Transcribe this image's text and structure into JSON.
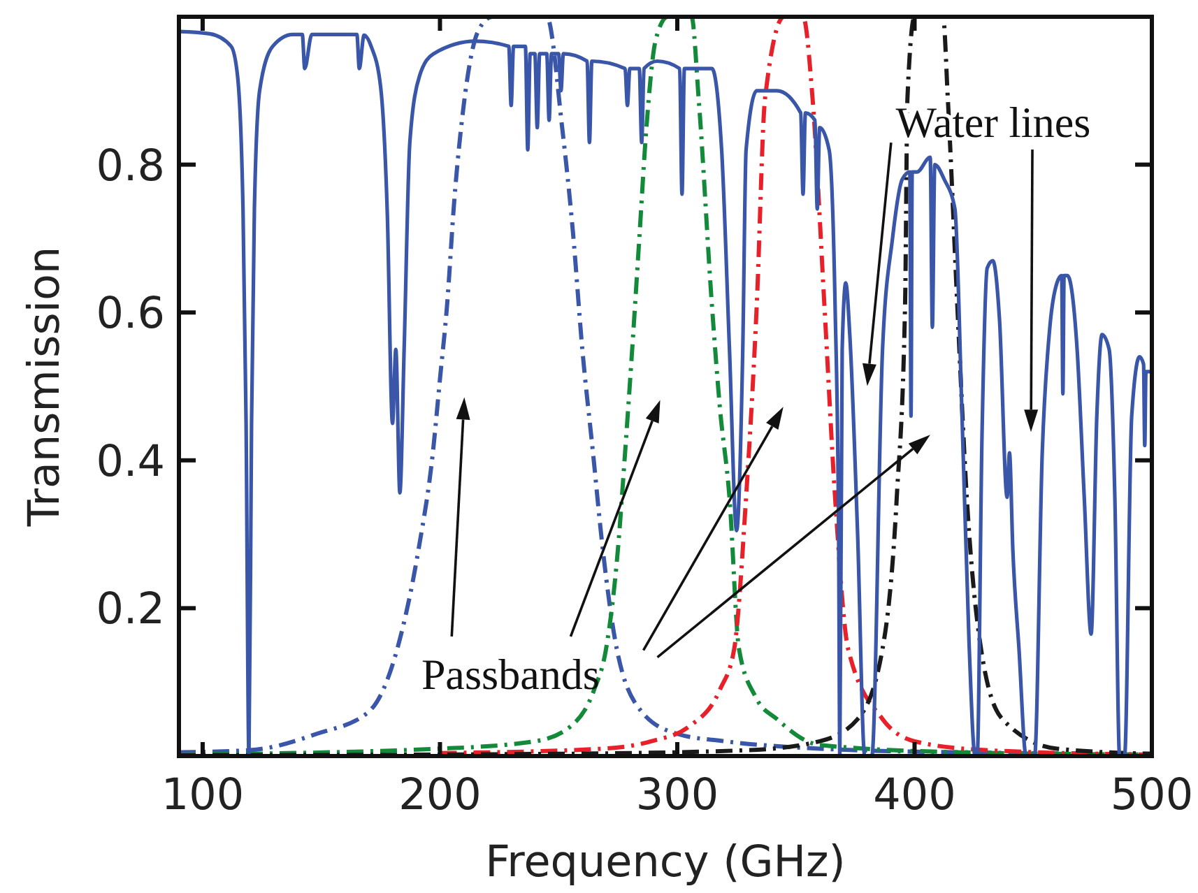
{
  "chart_data": {
    "type": "line",
    "xlabel": "Frequency (GHz)",
    "ylabel": "Transmission",
    "annotations": [
      "Water lines",
      "Passbands"
    ],
    "xlim": [
      90,
      500
    ],
    "ylim": [
      0,
      1
    ],
    "xticks": [
      100,
      200,
      300,
      400,
      500
    ],
    "yticks": [
      {
        "value": 0,
        "label": null
      },
      0.2,
      0.4,
      0.6,
      0.8
    ],
    "grid": false,
    "marker": "none",
    "series": [
      {
        "color": "#3a56a8",
        "line_style": "dashed",
        "x": [
          90,
          120,
          148,
          170,
          182,
          191,
          197,
          200,
          203,
          206,
          210,
          216,
          222,
          245,
          251.5,
          256,
          260,
          264.5,
          268.6,
          274.5,
          285,
          300,
          320,
          360,
          420,
          500
        ],
        "values": [
          0.005,
          0.008,
          0.03,
          0.06,
          0.145,
          0.28,
          0.41,
          0.51,
          0.61,
          0.75,
          0.88,
          0.98,
          1.0,
          1.0,
          0.85,
          0.71,
          0.55,
          0.41,
          0.28,
          0.145,
          0.06,
          0.03,
          0.02,
          0.01,
          0.005,
          0.003
        ]
      },
      {
        "color": "#138a3a",
        "line_style": "dashed",
        "x": [
          90,
          200,
          240,
          255,
          265,
          270,
          275,
          278,
          281,
          284,
          287,
          291,
          296,
          306,
          309,
          314.6,
          318,
          322,
          326,
          333,
          342,
          360,
          420,
          500
        ],
        "values": [
          0.002,
          0.01,
          0.02,
          0.04,
          0.09,
          0.145,
          0.28,
          0.41,
          0.55,
          0.7,
          0.85,
          0.97,
          1.0,
          1.0,
          0.89,
          0.61,
          0.47,
          0.35,
          0.145,
          0.08,
          0.05,
          0.015,
          0.005,
          0.002
        ]
      },
      {
        "color": "#e8202a",
        "line_style": "dashed",
        "x": [
          200,
          269,
          289,
          305,
          318,
          324,
          329,
          333.5,
          337,
          345,
          353,
          357,
          362,
          366.5,
          372,
          386.5,
          400,
          430,
          500
        ],
        "values": [
          0.004,
          0.01,
          0.02,
          0.04,
          0.09,
          0.145,
          0.35,
          0.61,
          0.89,
          1.0,
          1.0,
          0.89,
          0.61,
          0.35,
          0.145,
          0.05,
          0.02,
          0.008,
          0.002
        ]
      },
      {
        "color": "#1a1a1a",
        "line_style": "dashed",
        "x": [
          90,
          250,
          330,
          360,
          376,
          386.5,
          392.5,
          396,
          397,
          400,
          412,
          414,
          418,
          422,
          428,
          437,
          460,
          500
        ],
        "values": [
          0.001,
          0.003,
          0.008,
          0.02,
          0.05,
          0.145,
          0.35,
          0.61,
          0.89,
          1.0,
          1.0,
          0.89,
          0.61,
          0.35,
          0.145,
          0.05,
          0.01,
          0.003
        ]
      },
      {
        "color": "#3a56a8",
        "line_style": "solid",
        "x": [
          90,
          103,
          112,
          114.7,
          117,
          118.3,
          119.5,
          120.6,
          121.8,
          124,
          129.5,
          138,
          142,
          143,
          146,
          162,
          165,
          166,
          168,
          171,
          175,
          177.8,
          180,
          181.4,
          183.1,
          184.9,
          187.3,
          191.4,
          197.3,
          215,
          229,
          230,
          231,
          232,
          236,
          237,
          238,
          240,
          241,
          242,
          245,
          246,
          247,
          250,
          251,
          252,
          262,
          263,
          264,
          278,
          279,
          280,
          284,
          285,
          286,
          291.6,
          301,
          302,
          303,
          314.6,
          318.7,
          322,
          325,
          327.6,
          329,
          333.5,
          342,
          352,
          353,
          354,
          358,
          359,
          360,
          364,
          366.5,
          368,
          368.5,
          369.5,
          371,
          372.7,
          376,
          379,
          382,
          386.5,
          390.7,
          394.8,
          398,
          398.5,
          399,
          401,
          406.6,
          407.5,
          408.5,
          412.5,
          417,
          420,
          423,
          425.5,
          426.4,
          428.4,
          430.6,
          433,
          435.8,
          439,
          440,
          441.4,
          444,
          447,
          450.6,
          453.8,
          457,
          460,
          462,
          462.5,
          463,
          464.4,
          468.5,
          471.5,
          474.4,
          476.8,
          479,
          482,
          484.4,
          486.4,
          488.5,
          491.5,
          494.8,
          496.5,
          497,
          497.5,
          500
        ],
        "values": [
          0.98,
          0.977,
          0.96,
          0.92,
          0.74,
          0.45,
          0.0,
          0.45,
          0.74,
          0.9,
          0.96,
          0.976,
          0.976,
          0.93,
          0.976,
          0.976,
          0.976,
          0.93,
          0.975,
          0.96,
          0.905,
          0.735,
          0.45,
          0.55,
          0.356,
          0.55,
          0.83,
          0.92,
          0.95,
          0.967,
          0.96,
          0.88,
          0.96,
          0.96,
          0.96,
          0.82,
          0.95,
          0.95,
          0.85,
          0.95,
          0.95,
          0.86,
          0.95,
          0.95,
          0.9,
          0.95,
          0.94,
          0.83,
          0.94,
          0.93,
          0.88,
          0.93,
          0.93,
          0.83,
          0.93,
          0.94,
          0.93,
          0.76,
          0.93,
          0.93,
          0.82,
          0.55,
          0.305,
          0.55,
          0.82,
          0.9,
          0.9,
          0.87,
          0.76,
          0.87,
          0.86,
          0.74,
          0.85,
          0.82,
          0.61,
          0.3,
          0.0,
          0.55,
          0.64,
          0.57,
          0.3,
          0.0,
          0.0,
          0.55,
          0.7,
          0.78,
          0.79,
          0.46,
          0.79,
          0.79,
          0.81,
          0.58,
          0.8,
          0.78,
          0.74,
          0.46,
          0.15,
          0.0,
          0.0,
          0.43,
          0.66,
          0.67,
          0.59,
          0.35,
          0.41,
          0.28,
          0.145,
          0.0,
          0.0,
          0.41,
          0.58,
          0.64,
          0.65,
          0.49,
          0.65,
          0.65,
          0.55,
          0.35,
          0.165,
          0.46,
          0.57,
          0.55,
          0.35,
          0.0,
          0.0,
          0.46,
          0.54,
          0.53,
          0.42,
          0.52,
          0.52
        ]
      }
    ]
  }
}
